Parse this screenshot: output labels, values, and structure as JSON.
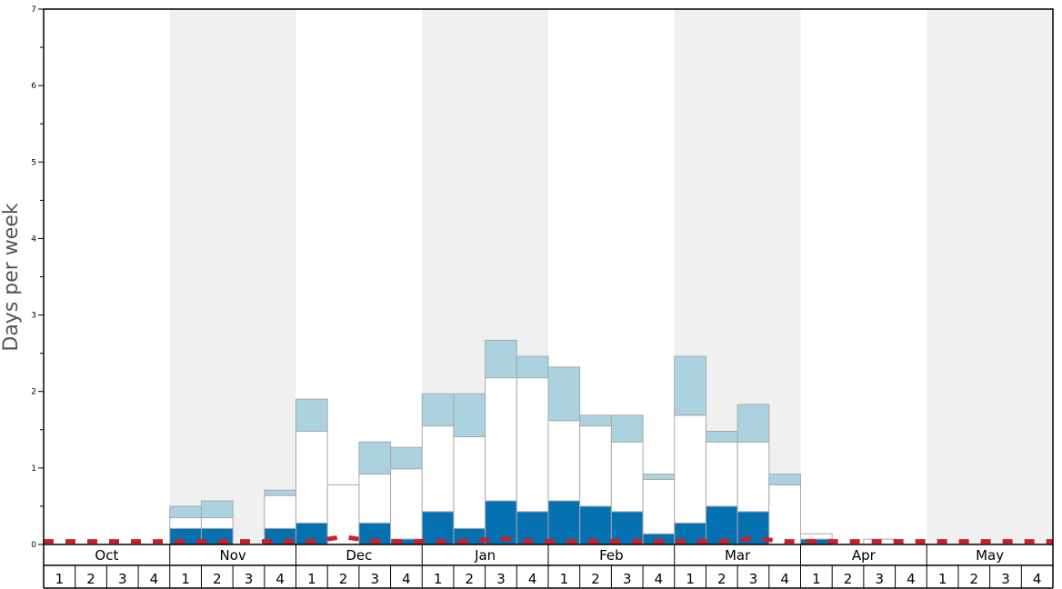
{
  "chart_data": {
    "type": "bar",
    "ylabel": "Days per week",
    "ylim": [
      0,
      7
    ],
    "y_major_ticks": [
      "0",
      "1",
      "2",
      "3",
      "4",
      "5",
      "6",
      "7"
    ],
    "months": [
      "Oct",
      "Nov",
      "Dec",
      "Jan",
      "Feb",
      "Mar",
      "Apr",
      "May"
    ],
    "weeks": [
      "1",
      "2",
      "3",
      "4"
    ],
    "month_bands": [
      "white",
      "shaded",
      "white",
      "shaded",
      "white",
      "shaded",
      "white",
      "shaded"
    ],
    "legend": "none",
    "grid": false,
    "colors": {
      "dark": "#0571b0",
      "white": "#ffffff",
      "light": "#abd3df",
      "line": "#cc1f2c",
      "shade": "#f0f0f1"
    },
    "stack_levels": [
      "dark",
      "white",
      "light"
    ],
    "bars": [
      [
        0,
        0,
        0
      ],
      [
        0,
        0,
        0
      ],
      [
        0,
        0,
        0
      ],
      [
        0,
        0,
        0
      ],
      [
        0.21,
        0.35,
        0.5
      ],
      [
        0.21,
        0.35,
        0.57
      ],
      [
        0,
        0,
        0
      ],
      [
        0.21,
        0.64,
        0.71
      ],
      [
        0.28,
        1.48,
        1.9
      ],
      [
        0,
        0.78,
        0.78
      ],
      [
        0.28,
        0.92,
        1.34
      ],
      [
        0.07,
        0.99,
        1.27
      ],
      [
        0.43,
        1.55,
        1.97
      ],
      [
        0.21,
        1.41,
        1.97
      ],
      [
        0.57,
        2.18,
        2.67
      ],
      [
        0.43,
        2.18,
        2.46
      ],
      [
        0.57,
        1.62,
        2.32
      ],
      [
        0.5,
        1.55,
        1.69
      ],
      [
        0.43,
        1.34,
        1.69
      ],
      [
        0.14,
        0.85,
        0.92
      ],
      [
        0.28,
        1.69,
        2.46
      ],
      [
        0.5,
        1.34,
        1.48
      ],
      [
        0.43,
        1.34,
        1.83
      ],
      [
        0,
        0.78,
        0.92
      ],
      [
        0.07,
        0.14,
        0.14
      ],
      [
        0,
        0,
        0
      ],
      [
        0,
        0.07,
        0.07
      ],
      [
        0,
        0,
        0
      ],
      [
        0,
        0,
        0
      ],
      [
        0,
        0,
        0
      ],
      [
        0,
        0,
        0
      ],
      [
        0,
        0,
        0
      ]
    ],
    "line_series": [
      0.04,
      0.04,
      0.04,
      0.04,
      0.04,
      0.04,
      0.04,
      0.04,
      0.04,
      0.1,
      0.04,
      0.04,
      0.04,
      0.04,
      0.08,
      0.04,
      0.04,
      0.04,
      0.04,
      0.04,
      0.04,
      0.04,
      0.08,
      0.04,
      0.04,
      0.04,
      0.04,
      0.04,
      0.04,
      0.04,
      0.04,
      0.04
    ]
  }
}
